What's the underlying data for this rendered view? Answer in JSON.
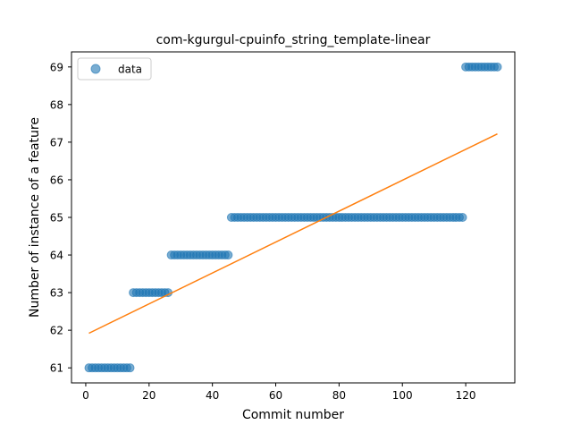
{
  "chart_data": {
    "type": "scatter",
    "title": "com-kgurgul-cpuinfo_string_template-linear",
    "xlabel": "Commit number",
    "ylabel": "Number of instance of a feature",
    "xlim": [
      -4.5,
      135.5
    ],
    "ylim": [
      60.6,
      69.4
    ],
    "xticks": [
      0,
      20,
      40,
      60,
      80,
      100,
      120
    ],
    "yticks": [
      61,
      62,
      63,
      64,
      65,
      66,
      67,
      68,
      69
    ],
    "grid": false,
    "legend": {
      "position": "upper-left",
      "entries": [
        "data"
      ]
    },
    "series": [
      {
        "name": "data",
        "kind": "scatter",
        "color": "#1f77b4",
        "segments": [
          {
            "x_start": 1,
            "x_end": 14,
            "y": 61
          },
          {
            "x_start": 15,
            "x_end": 26,
            "y": 63
          },
          {
            "x_start": 27,
            "x_end": 45,
            "y": 64
          },
          {
            "x_start": 46,
            "x_end": 119,
            "y": 65
          },
          {
            "x_start": 120,
            "x_end": 130,
            "y": 69
          }
        ]
      },
      {
        "kind": "line",
        "color": "#ff7f0e",
        "points": [
          [
            1,
            61.92
          ],
          [
            130,
            67.22
          ]
        ]
      }
    ]
  }
}
